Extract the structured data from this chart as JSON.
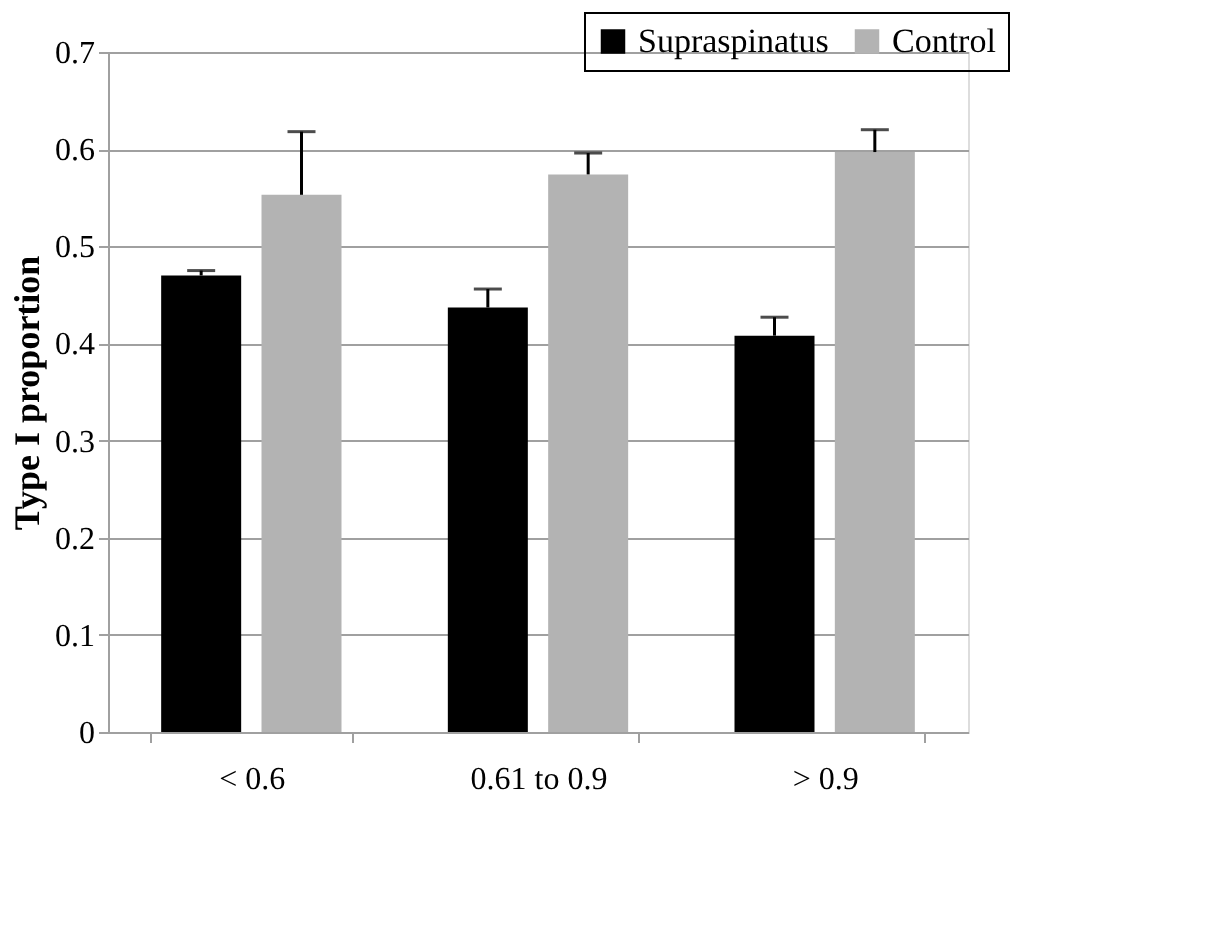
{
  "chart_data": {
    "type": "bar",
    "ylabel": "Type I proportion",
    "categories": [
      "< 0.6",
      "0.61 to 0.9",
      "> 0.9"
    ],
    "series": [
      {
        "name": "Supraspinatus",
        "color": "#000000",
        "values": [
          0.47,
          0.437,
          0.408
        ],
        "errors": [
          [
            0.47,
            0.475
          ],
          [
            0.437,
            0.456
          ],
          [
            0.408,
            0.427
          ]
        ]
      },
      {
        "name": "Control",
        "color": "#b3b3b3",
        "values": [
          0.553,
          0.574,
          0.597
        ],
        "errors": [
          [
            0.553,
            0.618
          ],
          [
            0.574,
            0.596
          ],
          [
            0.597,
            0.62
          ]
        ]
      }
    ],
    "ylim": [
      0,
      0.7
    ],
    "yticks": [
      0,
      0.1,
      0.2,
      0.3,
      0.4,
      0.5,
      0.6,
      0.7
    ],
    "grid": "y",
    "legend": "top right"
  }
}
